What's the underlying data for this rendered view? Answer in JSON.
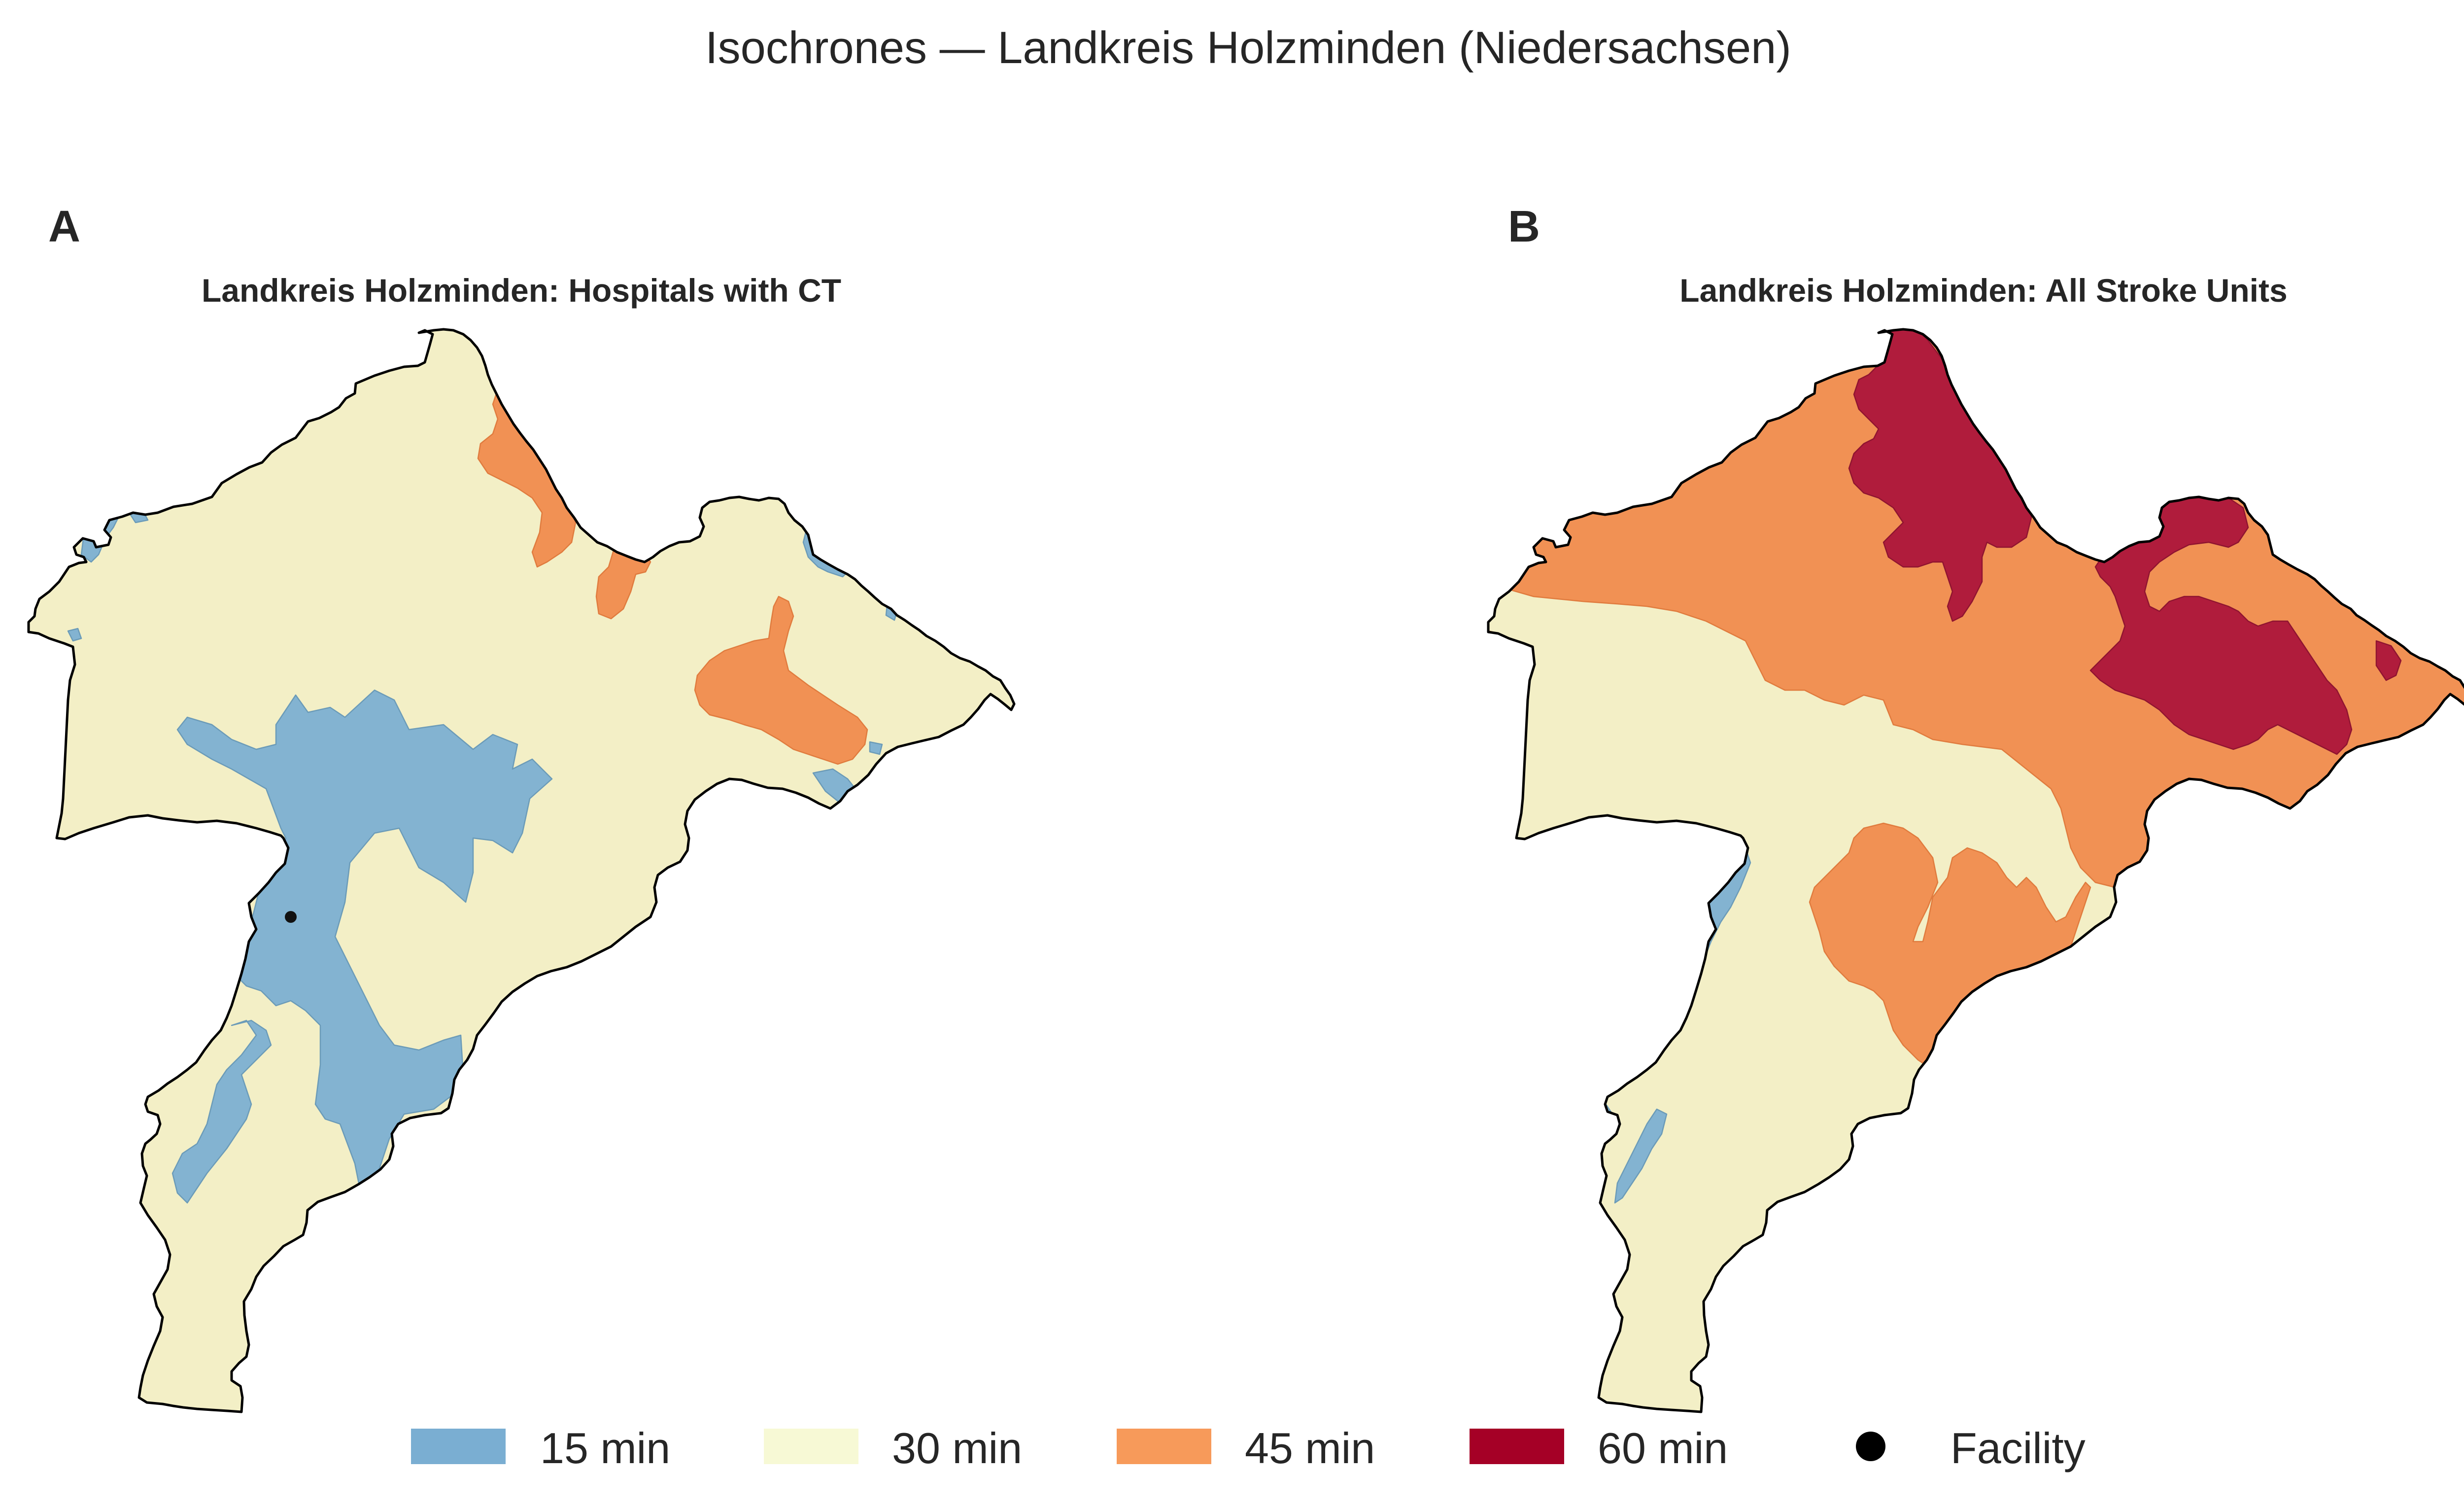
{
  "figure": {
    "title": "Isochrones — Landkreis Holzminden (Niedersachsen)"
  },
  "colors": {
    "min15": "#83b3d1",
    "min30": "#f3efc6",
    "min45": "#f19154",
    "min60": "#b01c3c",
    "facility": "#111111",
    "legend_min15": "#7aaed2",
    "legend_min30": "#f7f9d5",
    "legend_min45": "#f79a5a",
    "legend_min60": "#a50026"
  },
  "panels": [
    {
      "letter": "A",
      "title": "Landkreis Holzminden: Hospitals with CT",
      "facilities_shown": 1
    },
    {
      "letter": "B",
      "title": "Landkreis Holzminden: All Stroke Units",
      "facilities_shown": 0
    }
  ],
  "legend": {
    "items": [
      {
        "label": "15 min",
        "color": "#7aaed2",
        "symbol": "patch"
      },
      {
        "label": "30 min",
        "color": "#f7f9d5",
        "symbol": "patch"
      },
      {
        "label": "45 min",
        "color": "#f79a5a",
        "symbol": "patch"
      },
      {
        "label": "60 min",
        "color": "#a50026",
        "symbol": "patch"
      },
      {
        "label": "Facility",
        "color": "#000000",
        "symbol": "dot"
      }
    ]
  }
}
